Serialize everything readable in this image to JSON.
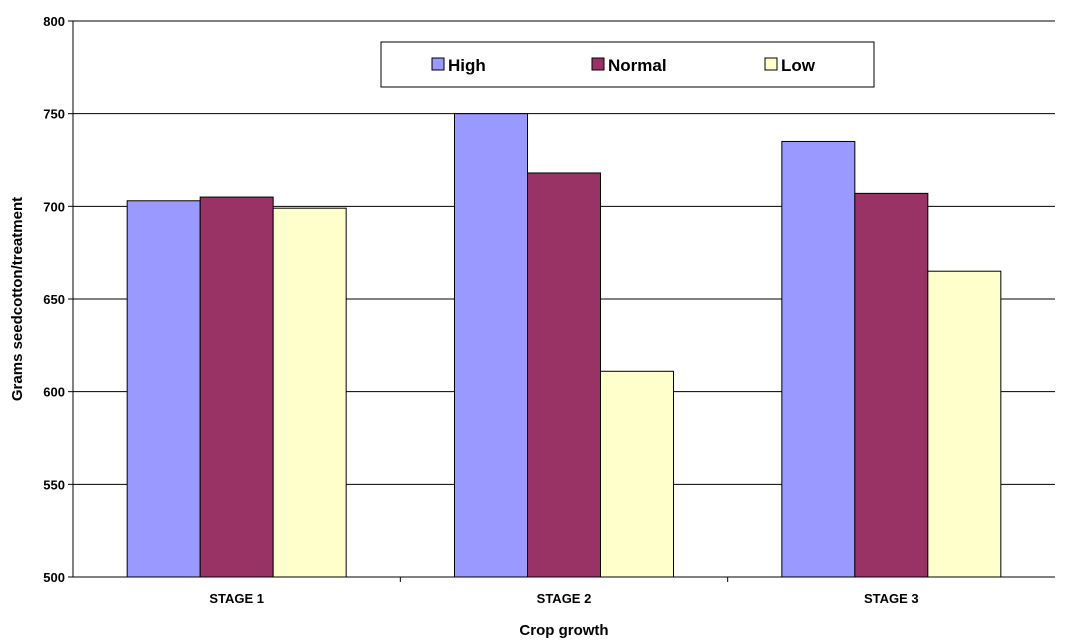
{
  "chart_data": {
    "type": "bar",
    "title": "",
    "xlabel": "Crop growth",
    "ylabel": "Grams seedcotton/treatment",
    "categories": [
      "STAGE 1",
      "STAGE 2",
      "STAGE 3"
    ],
    "ylim": [
      500,
      800
    ],
    "yticks": [
      "500",
      "550",
      "600",
      "650",
      "700",
      "750",
      "800"
    ],
    "grid": true,
    "legend_position": "top-center",
    "series": [
      {
        "name": "High",
        "color": "#9999ff",
        "values": [
          703,
          750,
          735
        ]
      },
      {
        "name": "Normal",
        "color": "#993366",
        "values": [
          705,
          718,
          707
        ]
      },
      {
        "name": "Low",
        "color": "#ffffcc",
        "values": [
          699,
          611,
          665
        ]
      }
    ]
  }
}
